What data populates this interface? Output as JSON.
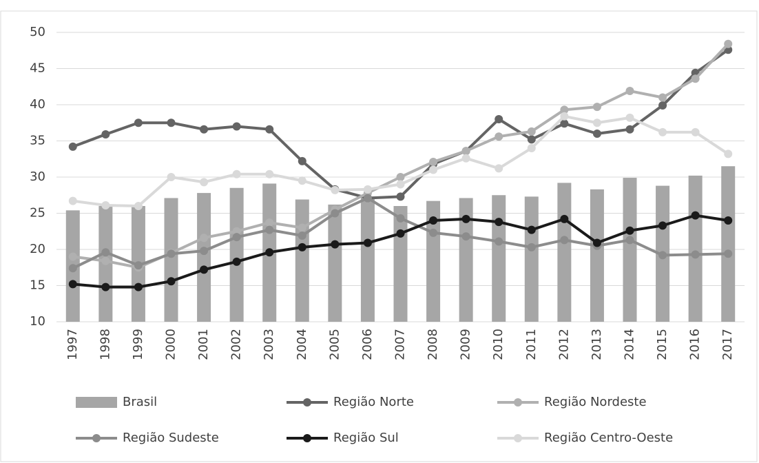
{
  "chart_data": {
    "type": "combo",
    "categories": [
      "1997",
      "1998",
      "1999",
      "2000",
      "2001",
      "2002",
      "2003",
      "2004",
      "2005",
      "2006",
      "2007",
      "2008",
      "2009",
      "2010",
      "2011",
      "2012",
      "2013",
      "2014",
      "2015",
      "2016",
      "2017"
    ],
    "ylim": [
      10,
      50
    ],
    "yticks": [
      10,
      15,
      20,
      25,
      30,
      35,
      40,
      45,
      50
    ],
    "grid": true,
    "legend": "bottom",
    "series": [
      {
        "name": "Brasil",
        "type": "bar",
        "color": "#a6a6a6",
        "values": [
          25.4,
          26.0,
          26.0,
          27.1,
          27.8,
          28.5,
          29.1,
          26.9,
          26.2,
          27.3,
          26.0,
          26.7,
          27.1,
          27.5,
          27.3,
          29.2,
          28.3,
          29.9,
          28.8,
          30.2,
          31.5
        ]
      },
      {
        "name": "Região Norte",
        "type": "line",
        "color": "#646464",
        "values": [
          34.2,
          35.9,
          37.5,
          37.5,
          36.6,
          37.0,
          36.6,
          32.2,
          28.3,
          27.1,
          27.3,
          31.8,
          33.6,
          38.0,
          35.2,
          37.4,
          36.0,
          36.6,
          39.9,
          44.4,
          47.6
        ]
      },
      {
        "name": "Região Nordeste",
        "type": "line",
        "color": "#b0b0b0",
        "values": [
          19.0,
          18.4,
          17.5,
          19.5,
          21.6,
          22.5,
          23.7,
          23.0,
          25.5,
          27.8,
          30.0,
          32.1,
          33.6,
          35.6,
          36.3,
          39.3,
          39.7,
          41.9,
          41.0,
          43.6,
          48.4
        ]
      },
      {
        "name": "Região Sudeste",
        "type": "line",
        "color": "#8c8c8c",
        "values": [
          17.4,
          19.6,
          17.8,
          19.4,
          19.8,
          21.7,
          22.7,
          21.9,
          25.0,
          27.1,
          24.3,
          22.3,
          21.8,
          21.1,
          20.3,
          21.3,
          20.5,
          21.3,
          19.2,
          19.3,
          19.4
        ]
      },
      {
        "name": "Região Sul",
        "type": "line",
        "color": "#1a1a1a",
        "values": [
          15.2,
          14.8,
          14.8,
          15.6,
          17.2,
          18.3,
          19.6,
          20.3,
          20.7,
          20.9,
          22.2,
          24.0,
          24.2,
          23.8,
          22.7,
          24.2,
          20.9,
          22.6,
          23.3,
          24.7,
          24.0
        ]
      },
      {
        "name": "Região Centro-Oeste",
        "type": "line",
        "color": "#d9d9d9",
        "values": [
          26.7,
          26.1,
          26.0,
          30.0,
          29.3,
          30.4,
          30.4,
          29.5,
          28.2,
          28.3,
          29.0,
          31.0,
          32.6,
          31.2,
          34.0,
          38.4,
          37.5,
          38.2,
          36.2,
          36.2,
          33.2
        ]
      }
    ]
  }
}
